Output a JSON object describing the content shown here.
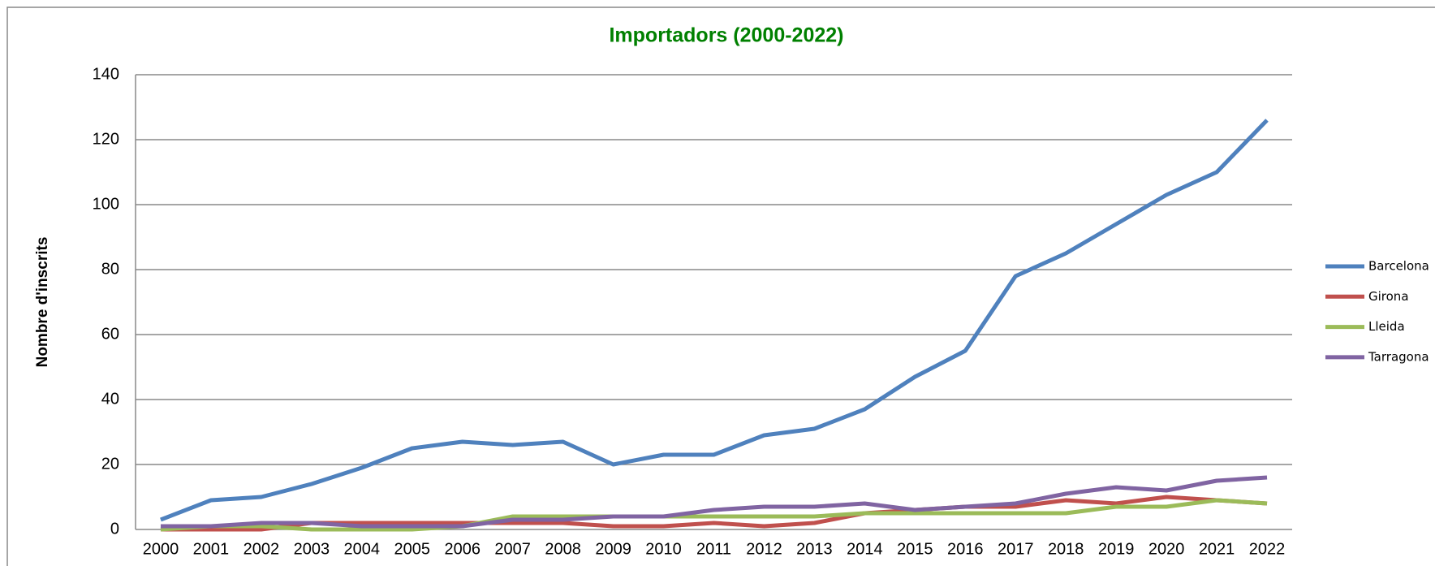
{
  "chart_data": {
    "type": "line",
    "title": "Importadors (2000-2022)",
    "y_label": "Nombre d'inscrits",
    "categories": [
      "2000",
      "2001",
      "2002",
      "2003",
      "2004",
      "2005",
      "2006",
      "2007",
      "2008",
      "2009",
      "2010",
      "2011",
      "2012",
      "2013",
      "2014",
      "2015",
      "2016",
      "2017",
      "2018",
      "2019",
      "2020",
      "2021",
      "2022"
    ],
    "series": [
      {
        "name": "Barcelona",
        "color": "#4f81bd",
        "values": [
          3,
          9,
          10,
          14,
          19,
          25,
          27,
          26,
          27,
          20,
          23,
          23,
          29,
          31,
          37,
          47,
          55,
          78,
          85,
          94,
          103,
          110,
          126
        ]
      },
      {
        "name": "Girona",
        "color": "#c0504d",
        "values": [
          0,
          0,
          0,
          2,
          2,
          2,
          2,
          2,
          2,
          1,
          1,
          2,
          1,
          2,
          5,
          6,
          7,
          7,
          9,
          8,
          10,
          9,
          8
        ]
      },
      {
        "name": "Lleida",
        "color": "#9bbb59",
        "values": [
          0,
          1,
          1,
          0,
          0,
          0,
          1,
          4,
          4,
          4,
          4,
          4,
          4,
          4,
          5,
          5,
          5,
          5,
          5,
          7,
          7,
          9,
          8
        ]
      },
      {
        "name": "Tarragona",
        "color": "#8064a2",
        "values": [
          1,
          1,
          2,
          2,
          1,
          1,
          1,
          3,
          3,
          4,
          4,
          6,
          7,
          7,
          8,
          6,
          7,
          8,
          11,
          13,
          12,
          15,
          16
        ]
      }
    ],
    "ylim": [
      0,
      140
    ],
    "yticks": [
      0,
      20,
      40,
      60,
      80,
      100,
      120,
      140
    ],
    "grid": true,
    "legend": "right"
  }
}
